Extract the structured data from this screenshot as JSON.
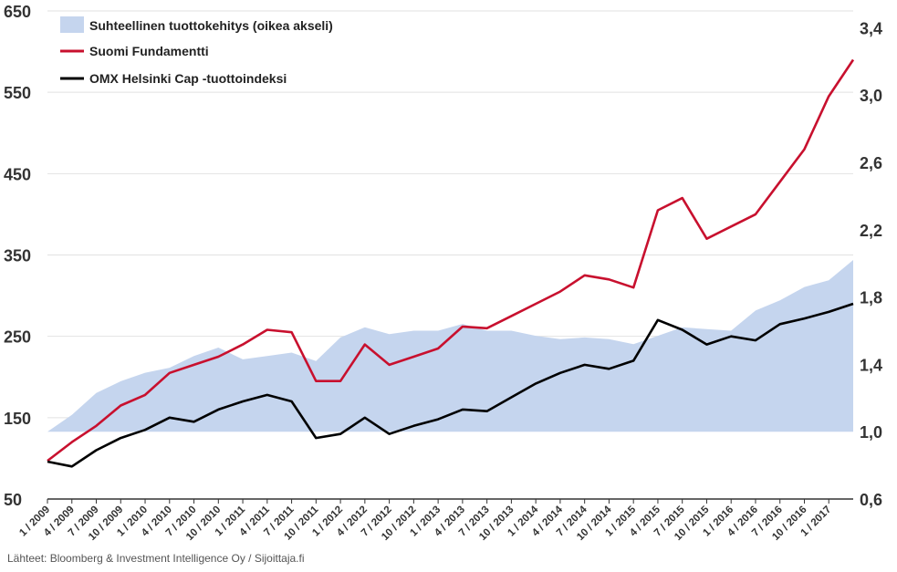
{
  "chart_data": {
    "type": "line",
    "title": "",
    "source": "Lähteet: Bloomberg & Investment Intelligence Oy / Sijoittaja.fi",
    "grid": true,
    "legend_position": "top-left",
    "left_axis": {
      "ylim": [
        50,
        650
      ],
      "ticks": [
        "650",
        "550",
        "450",
        "350",
        "250",
        "150",
        "50"
      ]
    },
    "right_axis": {
      "ylim": [
        0.6,
        3.5
      ],
      "ticks": [
        "3,4",
        "3,0",
        "2,6",
        "2,2",
        "1,8",
        "1,4",
        "1,0",
        "0,6"
      ]
    },
    "x_tick_labels": [
      "1 / 2009",
      "4 / 2009",
      "7 / 2009",
      "10 / 2009",
      "1 / 2010",
      "4 / 2010",
      "7 / 2010",
      "10 / 2010",
      "1 / 2011",
      "4 / 2011",
      "7 / 2011",
      "10 / 2011",
      "1 / 2012",
      "4 / 2012",
      "7 / 2012",
      "10 / 2012",
      "1 / 2013",
      "4 / 2013",
      "7 / 2013",
      "10 / 2013",
      "1 / 2014",
      "4 / 2014",
      "7 / 2014",
      "10 / 2014",
      "1 / 2015",
      "4 / 2015",
      "7 / 2015",
      "10 / 2015",
      "1 / 2016",
      "4 / 2016",
      "7 / 2016",
      "10 / 2016",
      "1 / 2017"
    ],
    "x": [
      "2009-01",
      "2009-04",
      "2009-07",
      "2009-10",
      "2010-01",
      "2010-04",
      "2010-07",
      "2010-10",
      "2011-01",
      "2011-04",
      "2011-07",
      "2011-10",
      "2012-01",
      "2012-04",
      "2012-07",
      "2012-10",
      "2013-01",
      "2013-04",
      "2013-07",
      "2013-10",
      "2014-01",
      "2014-04",
      "2014-07",
      "2014-10",
      "2015-01",
      "2015-04",
      "2015-07",
      "2015-10",
      "2016-01",
      "2016-04",
      "2016-07",
      "2016-10",
      "2017-01",
      "2017-04"
    ],
    "series": [
      {
        "name": "Suhteellinen tuottokehitys (oikea akseli)",
        "type": "area",
        "axis": "right",
        "color": "#c5d5ee",
        "values": [
          1.0,
          1.1,
          1.23,
          1.3,
          1.35,
          1.38,
          1.45,
          1.5,
          1.43,
          1.45,
          1.47,
          1.42,
          1.56,
          1.62,
          1.58,
          1.6,
          1.6,
          1.64,
          1.6,
          1.6,
          1.57,
          1.55,
          1.56,
          1.55,
          1.52,
          1.57,
          1.62,
          1.61,
          1.6,
          1.72,
          1.78,
          1.86,
          1.9,
          2.02
        ]
      },
      {
        "name": "Suomi Fundamentti",
        "type": "line",
        "axis": "left",
        "color": "#c8102e",
        "values": [
          97,
          120,
          140,
          165,
          178,
          205,
          215,
          225,
          240,
          258,
          255,
          195,
          195,
          240,
          215,
          225,
          235,
          262,
          260,
          275,
          290,
          305,
          325,
          320,
          310,
          405,
          420,
          370,
          385,
          400,
          440,
          480,
          545,
          590
        ]
      },
      {
        "name": "OMX Helsinki Cap -tuottoindeksi",
        "type": "line",
        "axis": "left",
        "color": "#000000",
        "values": [
          96,
          90,
          110,
          125,
          135,
          150,
          145,
          160,
          170,
          178,
          170,
          125,
          130,
          150,
          130,
          140,
          148,
          160,
          158,
          175,
          192,
          205,
          215,
          210,
          220,
          270,
          258,
          240,
          250,
          245,
          265,
          272,
          280,
          290
        ]
      }
    ]
  }
}
